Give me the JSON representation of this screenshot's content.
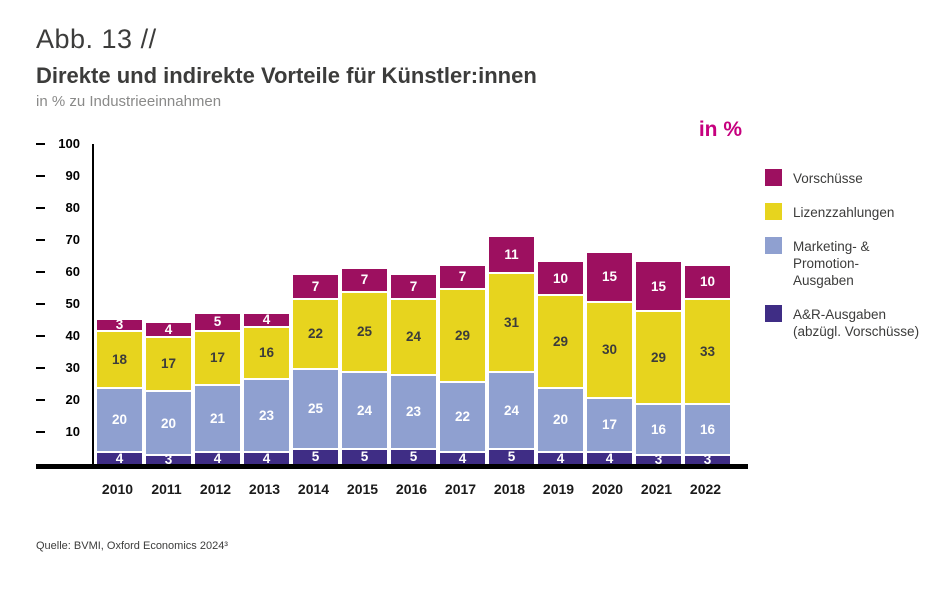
{
  "header": {
    "figure_label": "Abb. 13 //",
    "title": "Direkte und indirekte Vorteile für Künstler:innen",
    "subtitle": "in % zu Industrieeinnahmen"
  },
  "unit_label": "in %",
  "legend": [
    {
      "label": "Vorschüsse",
      "color": "#9d1060"
    },
    {
      "label": "Lizenzzahlungen",
      "color": "#e7d41e"
    },
    {
      "label": "Marketing- & Promotion-\nAusgaben",
      "color": "#8fa0d0"
    },
    {
      "label": "A&R-Ausgaben\n(abzügl. Vorschüsse)",
      "color": "#3f2d85"
    }
  ],
  "chart_data": {
    "type": "bar",
    "stacked": true,
    "title": "Direkte und indirekte Vorteile für Künstler:innen",
    "subtitle": "in % zu Industrieeinnahmen",
    "unit": "in %",
    "categories": [
      "2010",
      "2011",
      "2012",
      "2013",
      "2014",
      "2015",
      "2016",
      "2017",
      "2018",
      "2019",
      "2020",
      "2021",
      "2022"
    ],
    "series": [
      {
        "name": "A&R-Ausgaben (abzügl. Vorschüsse)",
        "color": "#3f2d85",
        "text_color": "#ffffff",
        "values": [
          4,
          3,
          4,
          4,
          5,
          5,
          5,
          4,
          5,
          4,
          4,
          3,
          3
        ]
      },
      {
        "name": "Marketing- & Promotion-Ausgaben",
        "color": "#8fa0d0",
        "text_color": "#ffffff",
        "values": [
          20,
          20,
          21,
          23,
          25,
          24,
          23,
          22,
          24,
          20,
          17,
          16,
          16
        ]
      },
      {
        "name": "Lizenzzahlungen",
        "color": "#e7d41e",
        "text_color": "#3c3c3b",
        "values": [
          18,
          17,
          17,
          16,
          22,
          25,
          24,
          29,
          31,
          29,
          30,
          29,
          33
        ]
      },
      {
        "name": "Vorschüsse",
        "color": "#9d1060",
        "text_color": "#ffffff",
        "values": [
          3,
          4,
          5,
          4,
          7,
          7,
          7,
          7,
          11,
          10,
          15,
          15,
          10
        ]
      }
    ],
    "ylim": [
      0,
      100
    ],
    "yticks": [
      100,
      90,
      80,
      70,
      60,
      50,
      40,
      30,
      20,
      10
    ],
    "grid": false,
    "legend_position": "right"
  },
  "source": "Quelle: BVMI, Oxford Economics 2024³"
}
